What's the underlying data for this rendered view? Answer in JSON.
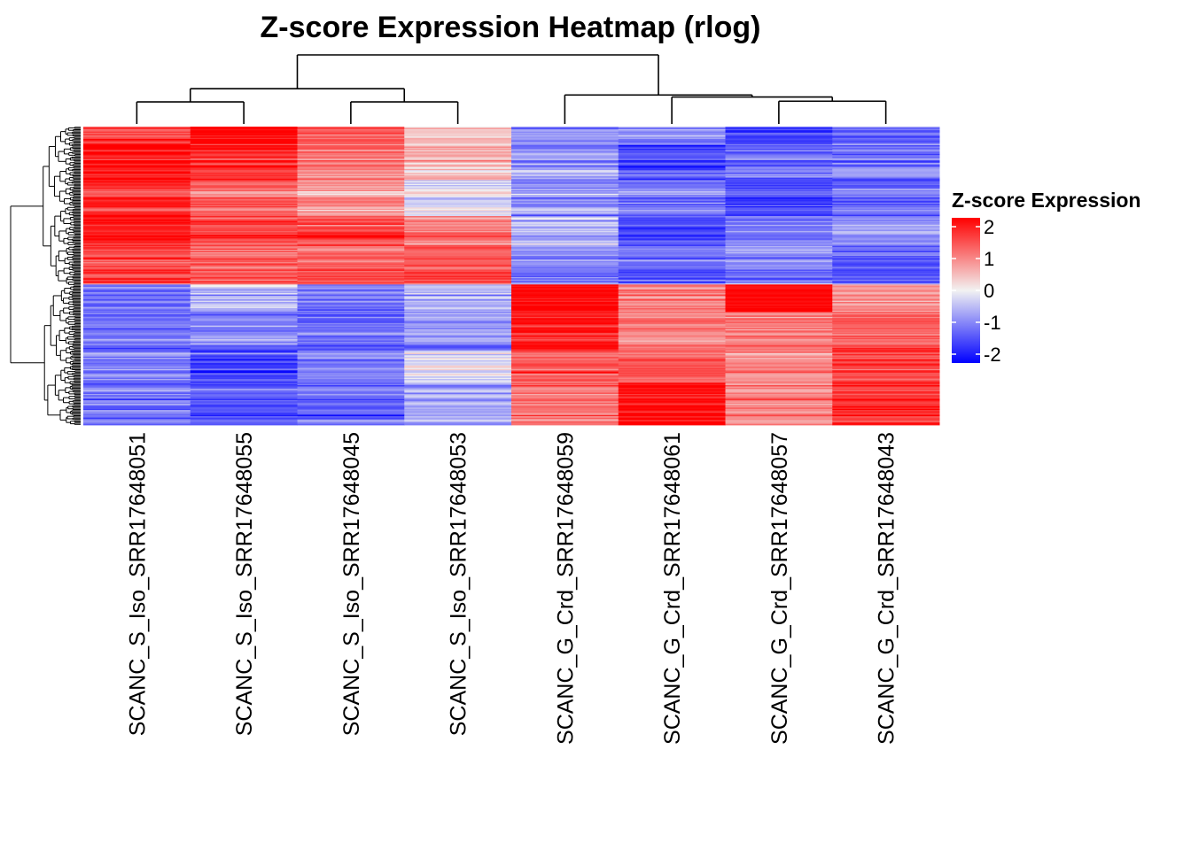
{
  "chart_data": {
    "type": "heatmap",
    "title": "Z-score Expression Heatmap (rlog)",
    "columns": [
      "SCANC_S_Iso_SRR17648051",
      "SCANC_S_Iso_SRR17648055",
      "SCANC_S_Iso_SRR17648045",
      "SCANC_S_Iso_SRR17648053",
      "SCANC_G_Crd_SRR17648059",
      "SCANC_G_Crd_SRR17648061",
      "SCANC_G_Crd_SRR17648057",
      "SCANC_G_Crd_SRR17648043"
    ],
    "groups": [
      {
        "columns": [
          0,
          1,
          2,
          3
        ],
        "row_blocks": [
          {
            "fraction": 0.06,
            "means": [
              1.4,
              2.0,
              1.2,
              0.2,
              -0.9,
              -0.8,
              -1.3,
              -1.1
            ]
          },
          {
            "fraction": 0.12,
            "means": [
              1.9,
              1.7,
              1.0,
              0.5,
              -0.7,
              -1.4,
              -1.1,
              -1.0
            ]
          },
          {
            "fraction": 0.12,
            "means": [
              1.6,
              1.1,
              0.7,
              -0.2,
              -0.8,
              -1.0,
              -1.4,
              -1.1
            ]
          },
          {
            "fraction": 0.1,
            "means": [
              1.9,
              1.5,
              1.5,
              1.0,
              -0.6,
              -1.4,
              -1.0,
              -0.8
            ]
          },
          {
            "fraction": 0.13,
            "means": [
              1.4,
              1.2,
              1.2,
              1.3,
              -0.9,
              -1.1,
              -0.9,
              -1.2
            ]
          }
        ]
      },
      {
        "columns": [
          4,
          5,
          6,
          7
        ],
        "row_blocks": [
          {
            "fraction": 0.09,
            "means": [
              -1.0,
              -0.5,
              -1.0,
              -0.5,
              2.0,
              0.9,
              2.0,
              0.8
            ]
          },
          {
            "fraction": 0.13,
            "means": [
              -1.1,
              -1.0,
              -1.2,
              -0.8,
              1.8,
              1.0,
              1.0,
              1.3
            ]
          },
          {
            "fraction": 0.11,
            "means": [
              -0.9,
              -1.4,
              -0.9,
              -0.1,
              1.2,
              1.2,
              0.8,
              1.4
            ]
          },
          {
            "fraction": 0.14,
            "means": [
              -1.0,
              -1.2,
              -1.1,
              -0.6,
              1.0,
              1.9,
              0.9,
              1.6
            ]
          }
        ]
      }
    ],
    "column_dendrogram": {
      "merges": [
        [
          0,
          1
        ],
        [
          2,
          3
        ],
        [
          6,
          7
        ],
        [
          5,
          10
        ],
        [
          4,
          11
        ],
        [
          8,
          9
        ],
        [
          12,
          13
        ]
      ],
      "heights": [
        0.32,
        0.32,
        0.33,
        0.39,
        0.42,
        0.51,
        1.0
      ]
    },
    "color_scale": {
      "low_color": "#0000ff",
      "mid_color": "#f2f2f2",
      "high_color": "#ff0000",
      "min": -2,
      "max": 2
    },
    "legend": {
      "title": "Z-score Expression",
      "ticks": [
        2,
        1,
        0,
        -1,
        -2
      ],
      "position": "right"
    }
  }
}
